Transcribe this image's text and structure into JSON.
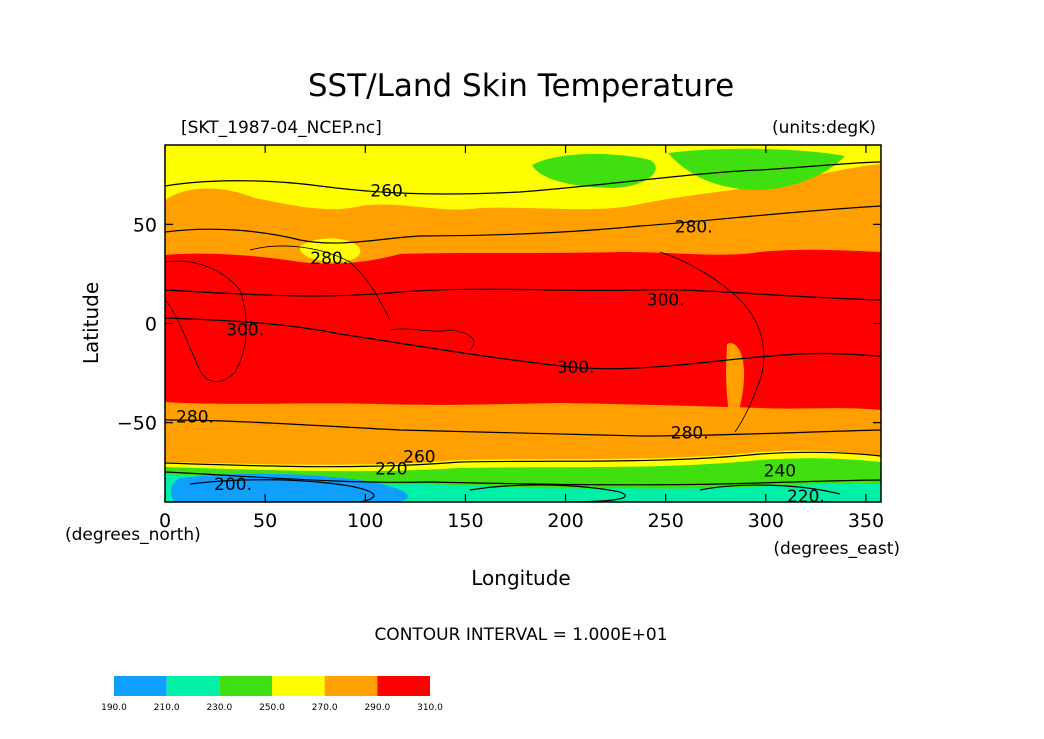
{
  "chart_data": {
    "type": "heatmap",
    "title": "SST/Land Skin Temperature",
    "left_label": "[SKT_1987-04_NCEP.nc]",
    "units_label": "(units:degK)",
    "xlabel": "Longitude",
    "ylabel": "Latitude",
    "x_unit_label": "(degrees_east)",
    "y_unit_label": "(degrees_north)",
    "footer": "CONTOUR INTERVAL = 1.000E+01",
    "xlim": [
      0,
      357.5
    ],
    "ylim": [
      -90,
      90
    ],
    "x_ticks": [
      0,
      50,
      100,
      150,
      200,
      250,
      300,
      350
    ],
    "x_tick_labels": [
      "0",
      "50",
      "100",
      "150",
      "200",
      "250",
      "300",
      "350"
    ],
    "y_ticks": [
      -50,
      0,
      50
    ],
    "y_tick_labels": [
      "−50",
      "0",
      "50"
    ],
    "colorbar": {
      "boundaries": [
        190,
        210,
        230,
        250,
        270,
        290,
        310
      ],
      "labels": [
        "190.0",
        "210.0",
        "230.0",
        "250.0",
        "270.0",
        "290.0",
        "310.0"
      ],
      "colors": [
        "#0fa0ff",
        "#00f0a8",
        "#40e010",
        "#ffff00",
        "#ffa000",
        "#ff0000"
      ]
    },
    "contour_labels": [
      {
        "text": "260.",
        "x": 112,
        "y": 67
      },
      {
        "text": "280.",
        "x": 264,
        "y": 49
      },
      {
        "text": "280.",
        "x": 82,
        "y": 33
      },
      {
        "text": "300.",
        "x": 250,
        "y": 12
      },
      {
        "text": "300.",
        "x": 40,
        "y": -3
      },
      {
        "text": "300.",
        "x": 205,
        "y": -22
      },
      {
        "text": "280.",
        "x": 15,
        "y": -47
      },
      {
        "text": "280.",
        "x": 262,
        "y": -55
      },
      {
        "text": "260",
        "x": 127,
        "y": -67
      },
      {
        "text": "220",
        "x": 113,
        "y": -73
      },
      {
        "text": "240",
        "x": 307,
        "y": -74
      },
      {
        "text": "200.",
        "x": 34,
        "y": -81
      },
      {
        "text": "220.",
        "x": 320,
        "y": -87
      }
    ]
  }
}
